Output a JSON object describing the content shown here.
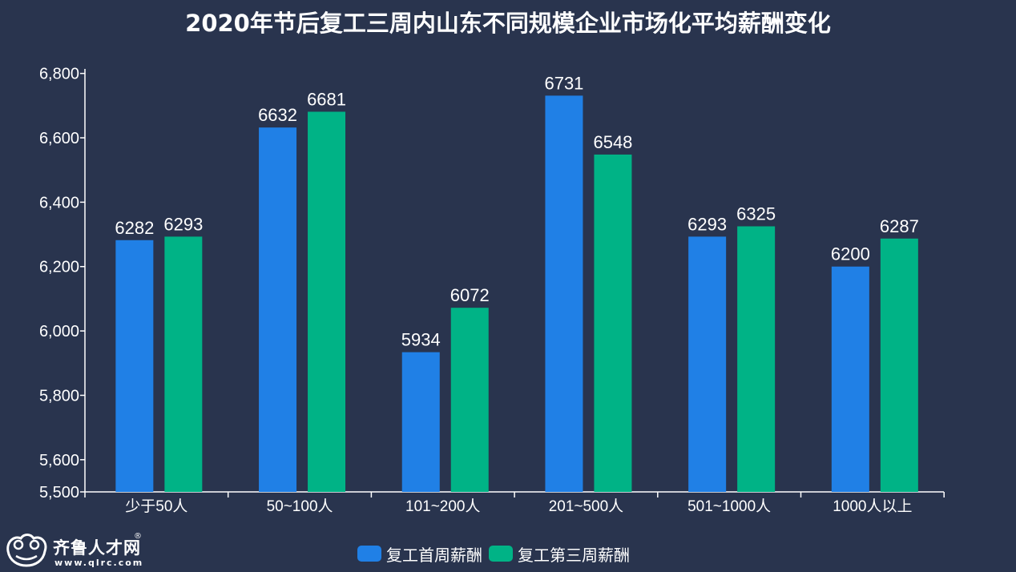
{
  "chart_data": {
    "type": "bar",
    "title": "2020年节后复工三周内山东不同规模企业市场化平均薪酬变化",
    "categories": [
      "少于50人",
      "50~100人",
      "101~200人",
      "201~500人",
      "501~1000人",
      "1000人以上"
    ],
    "series": [
      {
        "name": "复工首周薪酬",
        "color": "#2080e6",
        "values": [
          6282,
          6632,
          5934,
          6731,
          6293,
          6200
        ]
      },
      {
        "name": "复工第三周薪酬",
        "color": "#00b386",
        "values": [
          6293,
          6681,
          6072,
          6548,
          6325,
          6287
        ]
      }
    ],
    "ylim": [
      5500,
      6800
    ],
    "yticks": [
      5500,
      5600,
      5800,
      6000,
      6200,
      6400,
      6600,
      6800
    ],
    "ytick_labels": [
      "5,500",
      "5,600",
      "5,800",
      "6,000",
      "6,200",
      "6,400",
      "6,600",
      "6,800"
    ],
    "xlabel": "",
    "ylabel": "",
    "legend_position": "bottom-center",
    "grid": false
  },
  "branding": {
    "logo_name": "齐鲁人才网",
    "logo_reg": "®",
    "logo_url": "www.qlrc.com"
  },
  "colors": {
    "background": "#29344e",
    "axis": "#ffffff",
    "text": "#ffffff"
  }
}
